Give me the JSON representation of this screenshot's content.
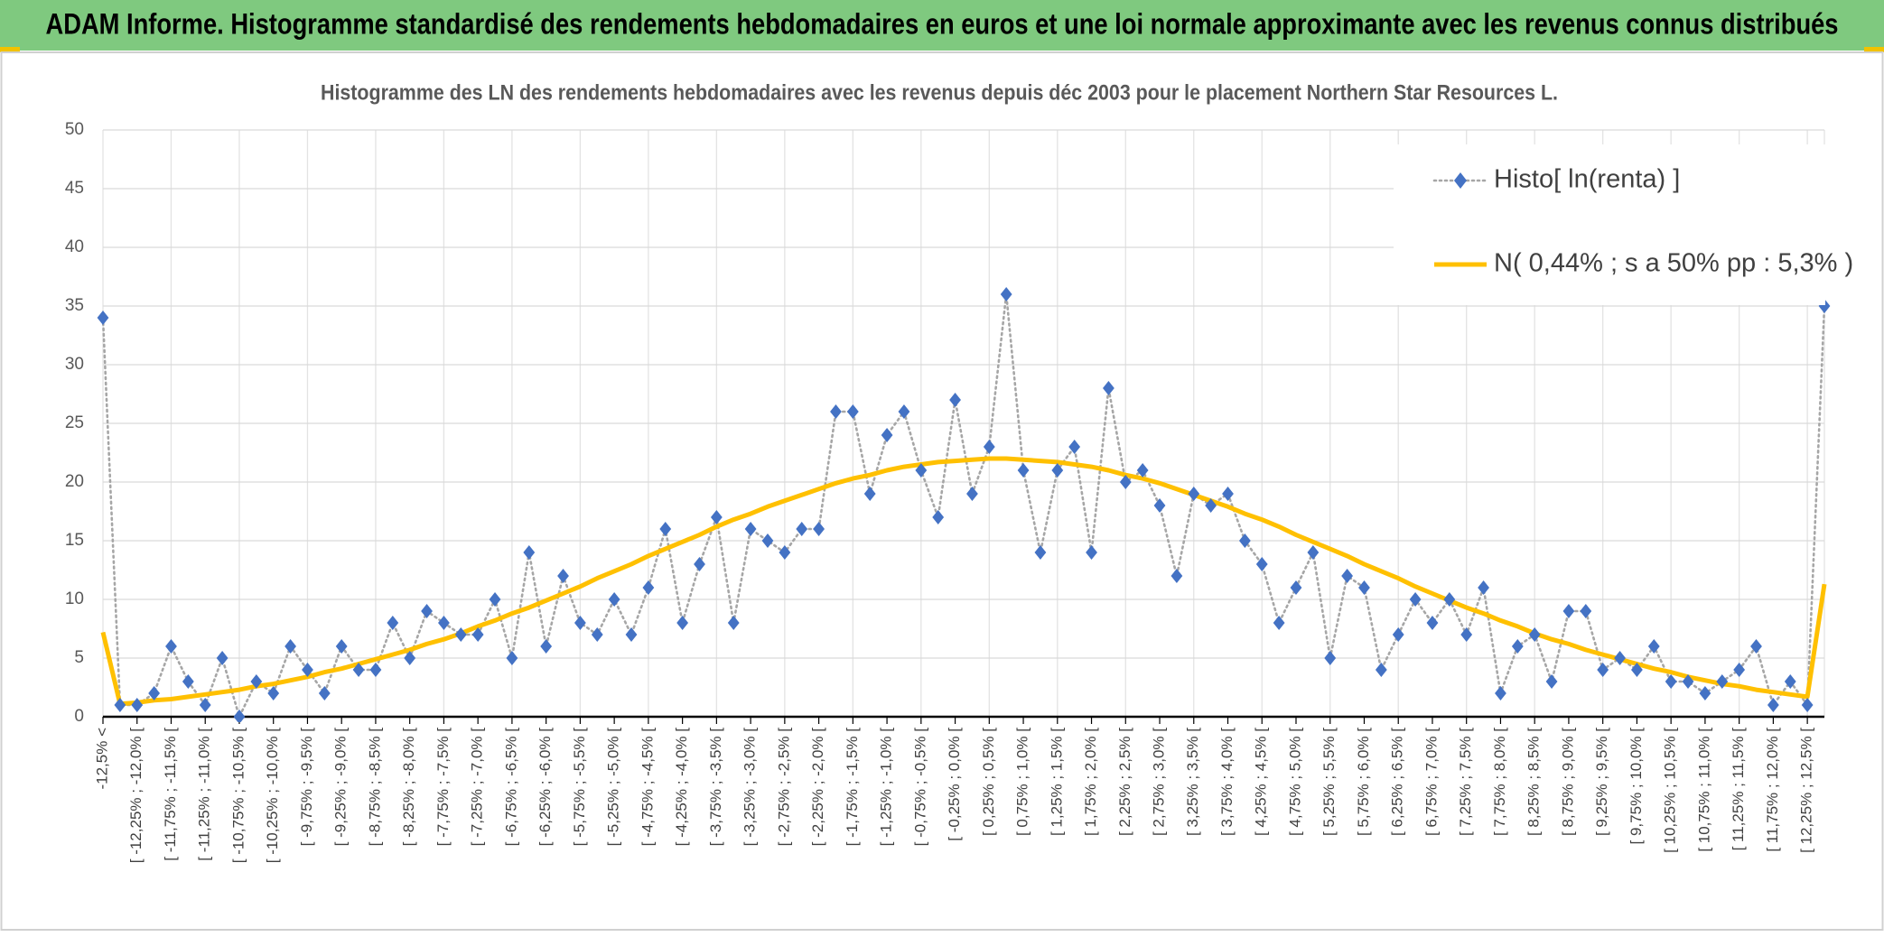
{
  "page_title": "ADAM Informe. Histogramme standardisé des rendements hebdomadaires en euros et une loi normale approximante avec les revenus connus distribués",
  "chart_data": {
    "type": "line",
    "title": "Histogramme des LN des rendements hebdomadaires avec les revenus depuis déc 2003 pour le placement Northern Star Resources L.",
    "categories": [
      "-12,5% <",
      null,
      "[ -12,25% ; -12,0% [",
      null,
      "[ -11,75% ; -11,5% [",
      null,
      "[ -11,25% ; -11,0% [",
      null,
      "[ -10,75% ; -10,5% [",
      null,
      "[ -10,25% ; -10,0% [",
      null,
      "[ -9,75% ; -9,5% [",
      null,
      "[ -9,25% ; -9,0% [",
      null,
      "[ -8,75% ; -8,5% [",
      null,
      "[ -8,25% ; -8,0% [",
      null,
      "[ -7,75% ; -7,5% [",
      null,
      "[ -7,25% ; -7,0% [",
      null,
      "[ -6,75% ; -6,5% [",
      null,
      "[ -6,25% ; -6,0% [",
      null,
      "[ -5,75% ; -5,5% [",
      null,
      "[ -5,25% ; -5,0% [",
      null,
      "[ -4,75% ; -4,5% [",
      null,
      "[ -4,25% ; -4,0% [",
      null,
      "[ -3,75% ; -3,5% [",
      null,
      "[ -3,25% ; -3,0% [",
      null,
      "[ -2,75% ; -2,5% [",
      null,
      "[ -2,25% ; -2,0% [",
      null,
      "[ -1,75% ; -1,5% [",
      null,
      "[ -1,25% ; -1,0% [",
      null,
      "[ -0,75% ; -0,5% [",
      null,
      "[ -0,25% ; 0,0% [",
      null,
      "[ 0,25% ; 0,5% [",
      null,
      "[ 0,75% ; 1,0% [",
      null,
      "[ 1,25% ; 1,5% [",
      null,
      "[ 1,75% ; 2,0% [",
      null,
      "[ 2,25% ; 2,5% [",
      null,
      "[ 2,75% ; 3,0% [",
      null,
      "[ 3,25% ; 3,5% [",
      null,
      "[ 3,75% ; 4,0% [",
      null,
      "[ 4,25% ; 4,5% [",
      null,
      "[ 4,75% ; 5,0% [",
      null,
      "[ 5,25% ; 5,5% [",
      null,
      "[ 5,75% ; 6,0% [",
      null,
      "[ 6,25% ; 6,5% [",
      null,
      "[ 6,75% ; 7,0% [",
      null,
      "[ 7,25% ; 7,5% [",
      null,
      "[ 7,75% ; 8,0% [",
      null,
      "[ 8,25% ; 8,5% [",
      null,
      "[ 8,75% ; 9,0% [",
      null,
      "[ 9,25% ; 9,5% [",
      null,
      "[ 9,75% ; 10,0% [",
      null,
      "[ 10,25% ; 10,5% [",
      null,
      "[ 10,75% ; 11,0% [",
      null,
      "[ 11,25% ; 11,5% [",
      null,
      "[ 11,75% ; 12,0% [",
      null,
      "[ 12,25% ; 12,5% [",
      null
    ],
    "series": [
      {
        "name": "Histo[ ln(renta) ]",
        "color": "#4472c4",
        "line_color": "#a6a6a6",
        "values": [
          34,
          1,
          1,
          2,
          6,
          3,
          1,
          5,
          0,
          3,
          2,
          6,
          4,
          2,
          6,
          4,
          4,
          8,
          5,
          9,
          8,
          7,
          7,
          10,
          5,
          14,
          6,
          12,
          8,
          7,
          10,
          7,
          11,
          16,
          8,
          13,
          17,
          8,
          16,
          15,
          14,
          16,
          16,
          26,
          26,
          19,
          24,
          26,
          21,
          17,
          27,
          19,
          23,
          36,
          21,
          14,
          21,
          23,
          14,
          28,
          20,
          21,
          18,
          12,
          19,
          18,
          19,
          15,
          13,
          8,
          11,
          14,
          5,
          12,
          11,
          4,
          7,
          10,
          8,
          10,
          7,
          11,
          2,
          6,
          7,
          3,
          9,
          9,
          4,
          5,
          4,
          6,
          3,
          3,
          2,
          3,
          4,
          6,
          1,
          3,
          1,
          35
        ]
      },
      {
        "name": "N( 0,44% ; s a 50% pp : 5,3% )",
        "color": "#ffc000",
        "values": [
          7.2,
          1.1,
          1.2,
          1.4,
          1.5,
          1.7,
          1.9,
          2.1,
          2.3,
          2.6,
          2.8,
          3.1,
          3.4,
          3.8,
          4.1,
          4.5,
          4.9,
          5.3,
          5.7,
          6.2,
          6.6,
          7.1,
          7.7,
          8.2,
          8.8,
          9.3,
          9.9,
          10.5,
          11.1,
          11.8,
          12.4,
          13.0,
          13.7,
          14.3,
          14.9,
          15.5,
          16.2,
          16.8,
          17.3,
          17.9,
          18.4,
          18.9,
          19.4,
          19.9,
          20.3,
          20.6,
          21.0,
          21.3,
          21.5,
          21.7,
          21.8,
          21.9,
          22.0,
          22.0,
          21.9,
          21.8,
          21.7,
          21.5,
          21.3,
          21.0,
          20.6,
          20.3,
          19.9,
          19.4,
          18.9,
          18.4,
          17.9,
          17.3,
          16.8,
          16.2,
          15.5,
          14.9,
          14.3,
          13.7,
          13.0,
          12.4,
          11.8,
          11.1,
          10.5,
          9.9,
          9.3,
          8.8,
          8.2,
          7.7,
          7.1,
          6.6,
          6.2,
          5.7,
          5.3,
          4.9,
          4.5,
          4.1,
          3.8,
          3.4,
          3.1,
          2.8,
          2.6,
          2.3,
          2.1,
          1.9,
          1.7,
          11.3
        ]
      }
    ],
    "ylim": [
      0,
      50
    ],
    "yticks": [
      0,
      5,
      10,
      15,
      20,
      25,
      30,
      35,
      40,
      45,
      50
    ],
    "grid": true,
    "legend": "upper right"
  }
}
